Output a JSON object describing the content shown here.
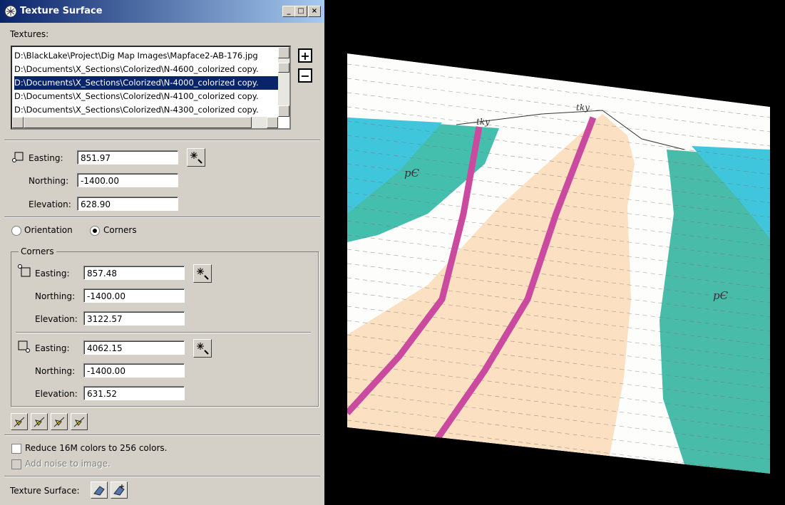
{
  "window": {
    "title": "Texture Surface"
  },
  "textures": {
    "label": "Textures:",
    "items": [
      "D:\\BlackLake\\Project\\Dig Map Images\\Mapface2-AB-176.jpg",
      "D:\\Documents\\X_Sections\\Colorized\\N-4600_colorized copy.",
      "D:\\Documents\\X_Sections\\Colorized\\N-4000_colorized copy.",
      "D:\\Documents\\X_Sections\\Colorized\\N-4100_colorized copy.",
      "D:\\Documents\\X_Sections\\Colorized\\N-4300_colorized copy."
    ],
    "add": "+",
    "remove": "−"
  },
  "origin": {
    "easting": {
      "label": "Easting:",
      "value": "851.97"
    },
    "northing": {
      "label": "Northing:",
      "value": "-1400.00"
    },
    "elevation": {
      "label": "Elevation:",
      "value": "628.90"
    }
  },
  "mode": {
    "orientation": "Orientation",
    "corners": "Corners"
  },
  "corners": {
    "title": "Corners",
    "upper": {
      "easting": {
        "label": "Easting:",
        "value": "857.48"
      },
      "northing": {
        "label": "Northing:",
        "value": "-1400.00"
      },
      "elevation": {
        "label": "Elevation:",
        "value": "3122.57"
      }
    },
    "lower": {
      "easting": {
        "label": "Easting:",
        "value": "4062.15"
      },
      "northing": {
        "label": "Northing:",
        "value": "-1400.00"
      },
      "elevation": {
        "label": "Elevation:",
        "value": "631.52"
      }
    }
  },
  "options": {
    "reduce": "Reduce 16M colors to 256 colors.",
    "noise": "Add noise to image."
  },
  "footer": {
    "label": "Texture Surface:"
  },
  "map": {
    "labels": [
      "tky",
      "tky",
      "pЄ",
      "pЄ"
    ]
  }
}
